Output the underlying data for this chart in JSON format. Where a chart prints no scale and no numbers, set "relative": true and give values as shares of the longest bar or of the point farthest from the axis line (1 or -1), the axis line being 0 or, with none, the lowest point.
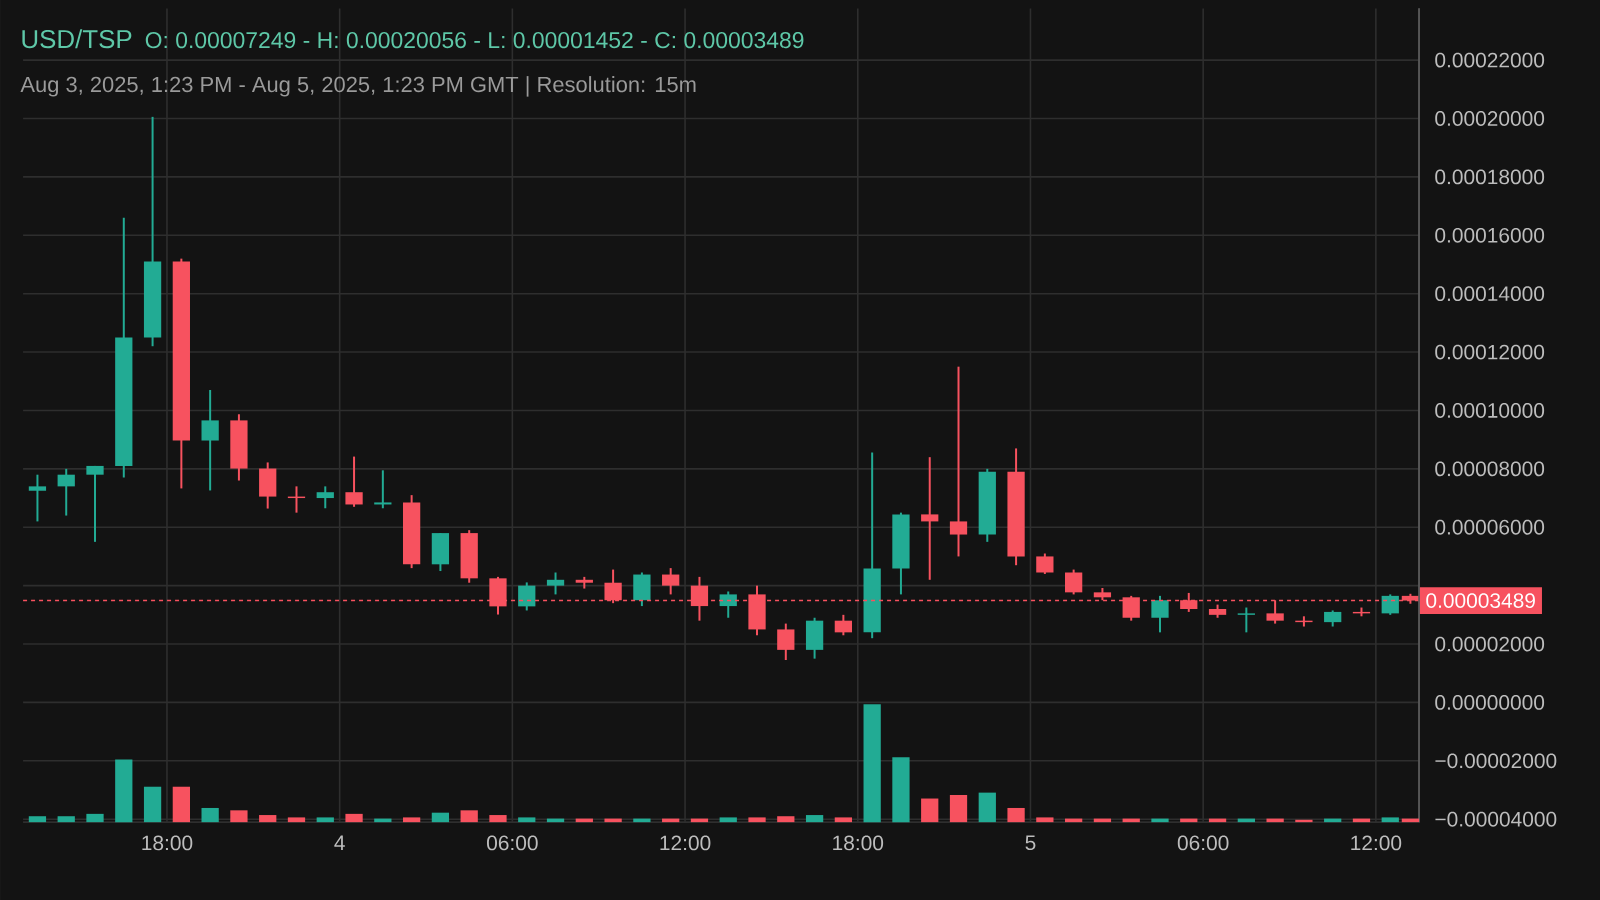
{
  "chart_data": [
    {
      "type": "candlestick",
      "title": "USD/TSP",
      "subtitle": "Aug 3, 2025, 1:23 PM - Aug 5, 2025, 1:23 PM GMT   |   Resolution: 15m",
      "annotations": [
        "O: 0.00007249 - H: 0.00020056 - L: 0.00001452 - C: 0.00003489"
      ],
      "x": [
        "2025-08-03T13:30",
        "2025-08-03T14:30",
        "2025-08-03T15:30",
        "2025-08-03T16:30",
        "2025-08-03T17:30",
        "2025-08-03T18:30",
        "2025-08-03T19:30",
        "2025-08-03T20:30",
        "2025-08-03T21:30",
        "2025-08-03T22:30",
        "2025-08-03T23:30",
        "2025-08-04T00:30",
        "2025-08-04T01:30",
        "2025-08-04T02:30",
        "2025-08-04T03:30",
        "2025-08-04T04:30",
        "2025-08-04T05:30",
        "2025-08-04T06:30",
        "2025-08-04T07:30",
        "2025-08-04T08:30",
        "2025-08-04T09:30",
        "2025-08-04T10:30",
        "2025-08-04T11:30",
        "2025-08-04T12:30",
        "2025-08-04T13:30",
        "2025-08-04T14:30",
        "2025-08-04T15:30",
        "2025-08-04T16:30",
        "2025-08-04T17:30",
        "2025-08-04T18:30",
        "2025-08-04T19:30",
        "2025-08-04T20:30",
        "2025-08-04T21:30",
        "2025-08-04T22:30",
        "2025-08-04T23:30",
        "2025-08-05T00:30",
        "2025-08-05T01:30",
        "2025-08-05T02:30",
        "2025-08-05T03:30",
        "2025-08-05T04:30",
        "2025-08-05T05:30",
        "2025-08-05T06:30",
        "2025-08-05T07:30",
        "2025-08-05T08:30",
        "2025-08-05T09:30",
        "2025-08-05T10:30",
        "2025-08-05T11:30",
        "2025-08-05T12:30",
        "2025-08-05T13:12"
      ],
      "xlim": [
        "2025-08-03T13:00",
        "2025-08-05T13:30"
      ],
      "xticks": [
        {
          "value": "2025-08-03T18:00",
          "label": null
        },
        {
          "value": "2025-08-04T00:00",
          "label": null
        },
        {
          "value": "2025-08-04T06:00",
          "label": null
        },
        {
          "value": "2025-08-04T12:00",
          "label": null
        },
        {
          "value": "2025-08-04T18:00",
          "label": null
        },
        {
          "value": "2025-08-05T00:00",
          "label": null
        },
        {
          "value": "2025-08-05T06:00",
          "label": null
        },
        {
          "value": "2025-08-05T12:00",
          "label": null
        }
      ],
      "tick_labels": "y",
      "ylim": [
        -4.11e-05,
        0.0002377
      ],
      "yticks": [
        {
          "value": -4e-05,
          "label": "−0.00004000"
        },
        {
          "value": -2e-05,
          "label": "−0.00002000"
        },
        {
          "value": 0,
          "label": "0.00000000"
        },
        {
          "value": 2e-05,
          "label": "0.00002000"
        },
        {
          "value": 4e-05,
          "label": null
        },
        {
          "value": 6e-05,
          "label": "0.00006000"
        },
        {
          "value": 8e-05,
          "label": "0.00008000"
        },
        {
          "value": 0.0001,
          "label": "0.00010000"
        },
        {
          "value": 0.00012,
          "label": "0.00012000"
        },
        {
          "value": 0.00014,
          "label": "0.00014000"
        },
        {
          "value": 0.00016,
          "label": "0.00016000"
        },
        {
          "value": 0.00018,
          "label": "0.00018000"
        },
        {
          "value": 0.0002,
          "label": "0.00020000"
        },
        {
          "value": 0.00022,
          "label": "0.00022000"
        }
      ],
      "ohlc": [
        [
          7.25e-05,
          7.8e-05,
          6.2e-05,
          7.4e-05
        ],
        [
          7.4e-05,
          8e-05,
          6.4e-05,
          7.8e-05
        ],
        [
          7.8e-05,
          8.1e-05,
          5.5e-05,
          8.1e-05
        ],
        [
          8.1e-05,
          0.000166,
          7.7e-05,
          0.000125
        ],
        [
          0.000125,
          0.00020056,
          0.000122,
          0.000151
        ],
        [
          0.000151,
          0.000152,
          7.33e-05,
          8.97e-05
        ],
        [
          8.97e-05,
          0.000107,
          7.26e-05,
          9.66e-05
        ],
        [
          9.66e-05,
          9.87e-05,
          7.6e-05,
          8.01e-05
        ],
        [
          8.01e-05,
          8.22e-05,
          6.64e-05,
          7.05e-05
        ],
        [
          7.05e-05,
          7.4e-05,
          6.5e-05,
          7e-05
        ],
        [
          7e-05,
          7.4e-05,
          6.65e-05,
          7.2e-05
        ],
        [
          7.2e-05,
          8.42e-05,
          6.7e-05,
          6.78e-05
        ],
        [
          6.78e-05,
          7.95e-05,
          6.65e-05,
          6.85e-05
        ],
        [
          6.85e-05,
          7.1e-05,
          4.6e-05,
          4.73e-05
        ],
        [
          4.73e-05,
          5.8e-05,
          4.5e-05,
          5.8e-05
        ],
        [
          5.8e-05,
          5.9e-05,
          4.1e-05,
          4.25e-05
        ],
        [
          4.25e-05,
          4.3e-05,
          3.01e-05,
          3.29e-05
        ],
        [
          3.29e-05,
          4.11e-05,
          3.15e-05,
          4e-05
        ],
        [
          4e-05,
          4.45e-05,
          3.7e-05,
          4.2e-05
        ],
        [
          4.2e-05,
          4.3e-05,
          3.9e-05,
          4.1e-05
        ],
        [
          4.1e-05,
          4.55e-05,
          3.4e-05,
          3.5e-05
        ],
        [
          3.5e-05,
          4.45e-05,
          3.3e-05,
          4.38e-05
        ],
        [
          4.38e-05,
          4.6e-05,
          3.7e-05,
          4e-05
        ],
        [
          4e-05,
          4.3e-05,
          2.8e-05,
          3.3e-05
        ],
        [
          3.3e-05,
          3.8e-05,
          2.9e-05,
          3.7e-05
        ],
        [
          3.7e-05,
          4e-05,
          2.3e-05,
          2.5e-05
        ],
        [
          2.5e-05,
          2.7e-05,
          1.452e-05,
          1.8e-05
        ],
        [
          1.8e-05,
          2.9e-05,
          1.5e-05,
          2.8e-05
        ],
        [
          2.8e-05,
          3e-05,
          2.3e-05,
          2.4e-05
        ],
        [
          2.4e-05,
          8.56e-05,
          2.2e-05,
          4.59e-05
        ],
        [
          4.59e-05,
          6.5e-05,
          3.7e-05,
          6.44e-05
        ],
        [
          6.44e-05,
          8.4e-05,
          4.2e-05,
          6.2e-05
        ],
        [
          6.2e-05,
          0.000115,
          5e-05,
          5.75e-05
        ],
        [
          5.75e-05,
          8e-05,
          5.5e-05,
          7.9e-05
        ],
        [
          7.9e-05,
          8.7e-05,
          4.7e-05,
          5e-05
        ],
        [
          5e-05,
          5.1e-05,
          4.4e-05,
          4.45e-05
        ],
        [
          4.45e-05,
          4.55e-05,
          3.7e-05,
          3.77e-05
        ],
        [
          3.77e-05,
          3.92e-05,
          3.5e-05,
          3.6e-05
        ],
        [
          3.6e-05,
          3.65e-05,
          2.8e-05,
          2.9e-05
        ],
        [
          2.9e-05,
          3.65e-05,
          2.4e-05,
          3.5e-05
        ],
        [
          3.5e-05,
          3.75e-05,
          3.1e-05,
          3.2e-05
        ],
        [
          3.2e-05,
          3.35e-05,
          2.9e-05,
          3e-05
        ],
        [
          3e-05,
          3.25e-05,
          2.4e-05,
          3.05e-05
        ],
        [
          3.05e-05,
          3.5e-05,
          2.7e-05,
          2.8e-05
        ],
        [
          2.8e-05,
          2.95e-05,
          2.6e-05,
          2.75e-05
        ],
        [
          2.75e-05,
          3.15e-05,
          2.6e-05,
          3.1e-05
        ],
        [
          3.1e-05,
          3.25e-05,
          2.95e-05,
          3.05e-05
        ],
        [
          3.05e-05,
          3.7e-05,
          3e-05,
          3.65e-05
        ],
        [
          3.65e-05,
          3.72e-05,
          3.38e-05,
          3.489e-05
        ]
      ],
      "colors": [
        "#22ab94",
        "#22ab94",
        "#22ab94",
        "#22ab94",
        "#22ab94",
        "#f7525f",
        "#22ab94",
        "#f7525f",
        "#f7525f",
        "#f7525f",
        "#22ab94",
        "#f7525f",
        "#22ab94",
        "#f7525f",
        "#22ab94",
        "#f7525f",
        "#f7525f",
        "#22ab94",
        "#22ab94",
        "#f7525f",
        "#f7525f",
        "#22ab94",
        "#f7525f",
        "#f7525f",
        "#22ab94",
        "#f7525f",
        "#f7525f",
        "#22ab94",
        "#f7525f",
        "#22ab94",
        "#22ab94",
        "#f7525f",
        "#f7525f",
        "#22ab94",
        "#f7525f",
        "#f7525f",
        "#f7525f",
        "#f7525f",
        "#f7525f",
        "#22ab94",
        "#f7525f",
        "#f7525f",
        "#22ab94",
        "#f7525f",
        "#f7525f",
        "#22ab94",
        "#f7525f",
        "#22ab94",
        "#f7525f"
      ],
      "grid": true,
      "ref_lines": [
        {
          "axis": "y",
          "value": 3.489e-05,
          "label": "0.00003489",
          "color": "#f7525f",
          "line_style": "dashed"
        }
      ]
    },
    {
      "type": "bar",
      "relative": true,
      "tick_labels": "x",
      "xticks": [
        {
          "value": "2025-08-03T18:00",
          "label": "18:00"
        },
        {
          "value": "2025-08-04T00:00",
          "label": "4"
        },
        {
          "value": "2025-08-04T06:00",
          "label": "06:00"
        },
        {
          "value": "2025-08-04T12:00",
          "label": "12:00"
        },
        {
          "value": "2025-08-04T18:00",
          "label": "18:00"
        },
        {
          "value": "2025-08-05T00:00",
          "label": "5"
        },
        {
          "value": "2025-08-05T06:00",
          "label": "06:00"
        },
        {
          "value": "2025-08-05T12:00",
          "label": "12:00"
        }
      ],
      "x": [
        "2025-08-03T13:30",
        "2025-08-03T14:30",
        "2025-08-03T15:30",
        "2025-08-03T16:30",
        "2025-08-03T17:30",
        "2025-08-03T18:30",
        "2025-08-03T19:30",
        "2025-08-03T20:30",
        "2025-08-03T21:30",
        "2025-08-03T22:30",
        "2025-08-03T23:30",
        "2025-08-04T00:30",
        "2025-08-04T01:30",
        "2025-08-04T02:30",
        "2025-08-04T03:30",
        "2025-08-04T04:30",
        "2025-08-04T05:30",
        "2025-08-04T06:30",
        "2025-08-04T07:30",
        "2025-08-04T08:30",
        "2025-08-04T09:30",
        "2025-08-04T10:30",
        "2025-08-04T11:30",
        "2025-08-04T12:30",
        "2025-08-04T13:30",
        "2025-08-04T14:30",
        "2025-08-04T15:30",
        "2025-08-04T16:30",
        "2025-08-04T17:30",
        "2025-08-04T18:30",
        "2025-08-04T19:30",
        "2025-08-04T20:30",
        "2025-08-04T21:30",
        "2025-08-04T22:30",
        "2025-08-04T23:30",
        "2025-08-05T00:30",
        "2025-08-05T01:30",
        "2025-08-05T02:30",
        "2025-08-05T03:30",
        "2025-08-05T04:30",
        "2025-08-05T05:30",
        "2025-08-05T06:30",
        "2025-08-05T07:30",
        "2025-08-05T08:30",
        "2025-08-05T09:30",
        "2025-08-05T10:30",
        "2025-08-05T11:30",
        "2025-08-05T12:30",
        "2025-08-05T13:12"
      ],
      "xlim": [
        "2025-08-03T13:00",
        "2025-08-05T13:30"
      ],
      "values": [
        0.05,
        0.05,
        0.07,
        0.53,
        0.3,
        0.3,
        0.12,
        0.1,
        0.06,
        0.04,
        0.04,
        0.07,
        0.03,
        0.04,
        0.08,
        0.1,
        0.06,
        0.04,
        0.03,
        0.03,
        0.03,
        0.03,
        0.03,
        0.03,
        0.04,
        0.04,
        0.05,
        0.06,
        0.04,
        1,
        0.55,
        0.2,
        0.23,
        0.25,
        0.12,
        0.04,
        0.03,
        0.03,
        0.03,
        0.03,
        0.03,
        0.03,
        0.03,
        0.03,
        0.02,
        0.03,
        0.03,
        0.04,
        0.03
      ],
      "colors": [
        "#22ab94",
        "#22ab94",
        "#22ab94",
        "#22ab94",
        "#22ab94",
        "#f7525f",
        "#22ab94",
        "#f7525f",
        "#f7525f",
        "#f7525f",
        "#22ab94",
        "#f7525f",
        "#22ab94",
        "#f7525f",
        "#22ab94",
        "#f7525f",
        "#f7525f",
        "#22ab94",
        "#22ab94",
        "#f7525f",
        "#f7525f",
        "#22ab94",
        "#f7525f",
        "#f7525f",
        "#22ab94",
        "#f7525f",
        "#f7525f",
        "#22ab94",
        "#f7525f",
        "#22ab94",
        "#22ab94",
        "#f7525f",
        "#f7525f",
        "#22ab94",
        "#f7525f",
        "#f7525f",
        "#f7525f",
        "#f7525f",
        "#f7525f",
        "#22ab94",
        "#f7525f",
        "#f7525f",
        "#22ab94",
        "#f7525f",
        "#f7525f",
        "#22ab94",
        "#f7525f",
        "#22ab94",
        "#f7525f"
      ]
    }
  ]
}
